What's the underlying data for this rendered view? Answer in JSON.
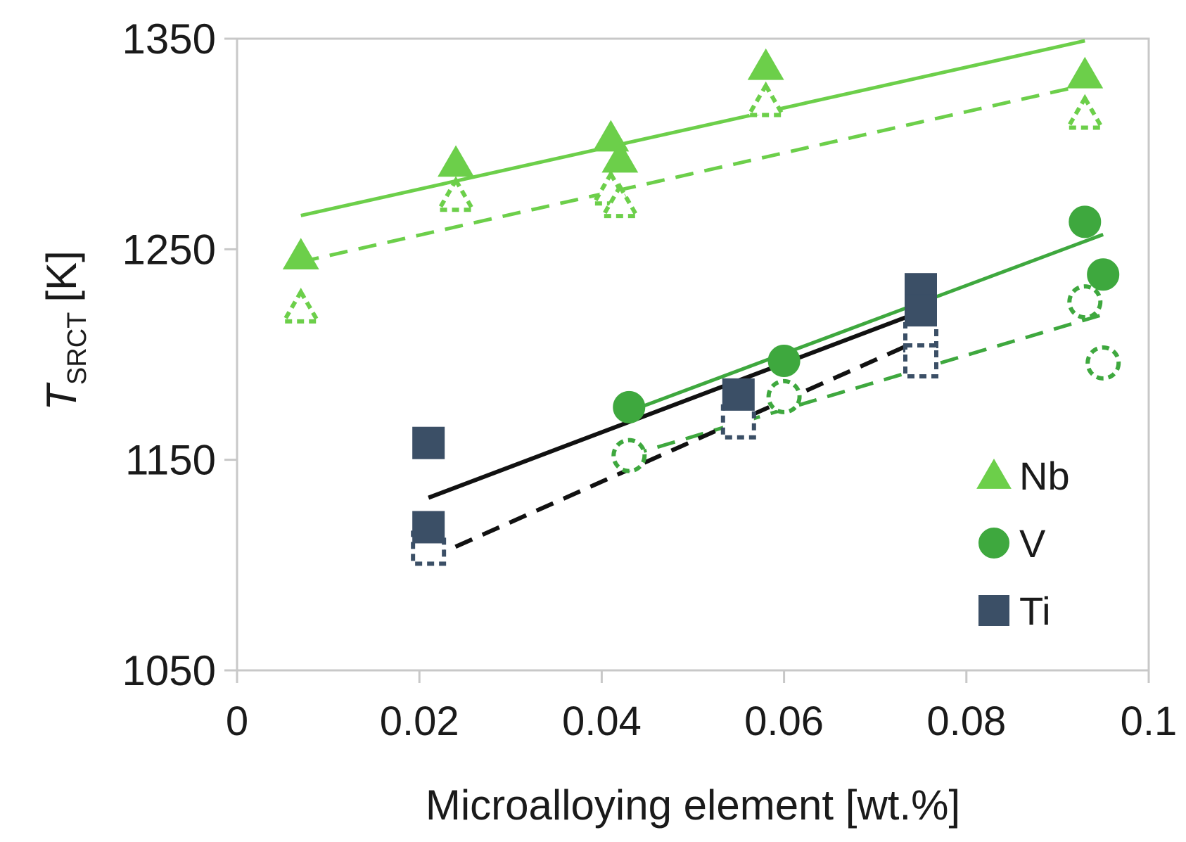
{
  "chart_data": {
    "type": "scatter",
    "title": "",
    "xlabel": "Microalloying element [wt.%]",
    "ylabel": {
      "main": "T",
      "subscript": "SRCT",
      "unit": "[K]"
    },
    "xlim": [
      0,
      0.1
    ],
    "ylim": [
      1050,
      1350
    ],
    "xticks": [
      "0",
      "0.02",
      "0.04",
      "0.06",
      "0.08",
      "0.1"
    ],
    "yticks": [
      "1050",
      "1150",
      "1250",
      "1350"
    ],
    "grid": false,
    "legend_position": "bottom-right",
    "legend": [
      {
        "label": "Nb",
        "marker": "triangle",
        "color": "#6ccf4a"
      },
      {
        "label": "V",
        "marker": "circle",
        "color": "#3ea83e"
      },
      {
        "label": "Ti",
        "marker": "square",
        "color": "#3b4f66"
      }
    ],
    "series": [
      {
        "element": "Nb",
        "style": "filled",
        "marker": "triangle",
        "color": "#6ccf4a",
        "points": [
          [
            0.007,
            1247
          ],
          [
            0.024,
            1291
          ],
          [
            0.041,
            1303
          ],
          [
            0.042,
            1293
          ],
          [
            0.058,
            1337
          ],
          [
            0.093,
            1333
          ]
        ]
      },
      {
        "element": "Nb",
        "style": "open-dashed",
        "marker": "triangle",
        "color": "#6ccf4a",
        "points": [
          [
            0.007,
            1222
          ],
          [
            0.024,
            1275
          ],
          [
            0.041,
            1278
          ],
          [
            0.042,
            1272
          ],
          [
            0.058,
            1320
          ],
          [
            0.093,
            1314
          ]
        ]
      },
      {
        "element": "V",
        "style": "filled",
        "marker": "circle",
        "color": "#3ea83e",
        "points": [
          [
            0.043,
            1175
          ],
          [
            0.06,
            1197
          ],
          [
            0.093,
            1263
          ],
          [
            0.095,
            1238
          ]
        ]
      },
      {
        "element": "V",
        "style": "open-dashed",
        "marker": "circle",
        "color": "#3ea83e",
        "points": [
          [
            0.043,
            1152
          ],
          [
            0.06,
            1180
          ],
          [
            0.093,
            1225
          ],
          [
            0.095,
            1196
          ]
        ]
      },
      {
        "element": "Ti",
        "style": "filled",
        "marker": "square",
        "color": "#3b4f66",
        "points": [
          [
            0.021,
            1158
          ],
          [
            0.021,
            1118
          ],
          [
            0.055,
            1181
          ],
          [
            0.075,
            1231
          ],
          [
            0.075,
            1221
          ]
        ]
      },
      {
        "element": "Ti",
        "style": "open-dashed",
        "marker": "square",
        "color": "#3b4f66",
        "points": [
          [
            0.021,
            1108
          ],
          [
            0.055,
            1168
          ],
          [
            0.075,
            1207
          ],
          [
            0.075,
            1197
          ]
        ]
      }
    ],
    "trendlines": [
      {
        "element": "Nb",
        "style": "solid",
        "color": "#6ccf4a",
        "x": [
          0.007,
          0.093
        ],
        "y": [
          1266,
          1349
        ]
      },
      {
        "element": "Nb",
        "style": "dashed",
        "color": "#6ccf4a",
        "x": [
          0.007,
          0.093
        ],
        "y": [
          1244,
          1328
        ]
      },
      {
        "element": "V",
        "style": "solid",
        "color": "#3ea83e",
        "x": [
          0.043,
          0.095
        ],
        "y": [
          1173,
          1257
        ]
      },
      {
        "element": "V",
        "style": "dashed",
        "color": "#3ea83e",
        "x": [
          0.043,
          0.095
        ],
        "y": [
          1152,
          1219
        ]
      },
      {
        "element": "Ti",
        "style": "solid",
        "color": "#111111",
        "x": [
          0.021,
          0.076
        ],
        "y": [
          1132,
          1222
        ]
      },
      {
        "element": "Ti",
        "style": "dashed",
        "color": "#111111",
        "x": [
          0.021,
          0.076
        ],
        "y": [
          1103,
          1209
        ]
      }
    ]
  }
}
